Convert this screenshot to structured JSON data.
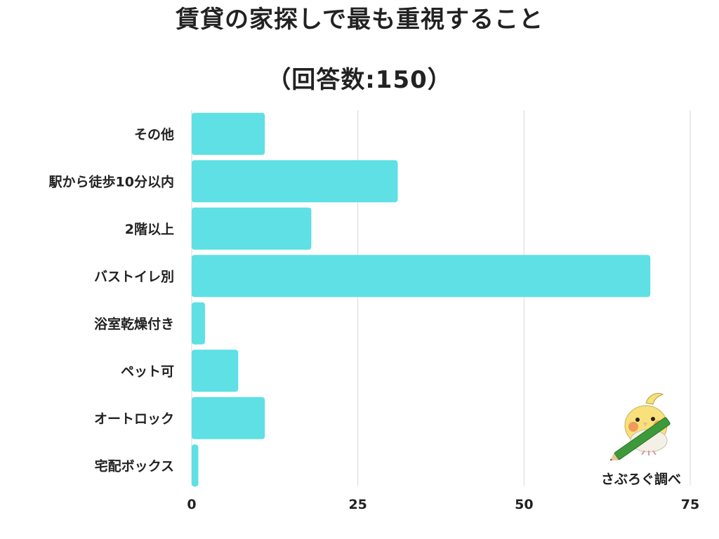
{
  "chart_data": {
    "type": "bar",
    "orientation": "horizontal",
    "title": "賃貸の家探しで最も重視すること",
    "subtitle": "（回答数:150）",
    "categories": [
      "その他",
      "駅から徒歩10分以内",
      "2階以上",
      "バストイレ別",
      "浴室乾燥付き",
      "ペット可",
      "オートロック",
      "宅配ボックス"
    ],
    "values": [
      11,
      31,
      18,
      69,
      2,
      7,
      11,
      1
    ],
    "xlim": [
      0,
      75
    ],
    "xticks": [
      0,
      25,
      50,
      75
    ],
    "xtick_labels": [
      "0",
      "25",
      "50",
      "75"
    ],
    "grid": true,
    "bar_color": "#5ee0e4",
    "grid_color": "#d9d9d9"
  },
  "credit": "さぶろぐ調べ",
  "mascot": {
    "icon": "cockatiel-with-pencil-icon",
    "body_color": "#f8e07a",
    "pencil_color": "#3d9a3a"
  }
}
